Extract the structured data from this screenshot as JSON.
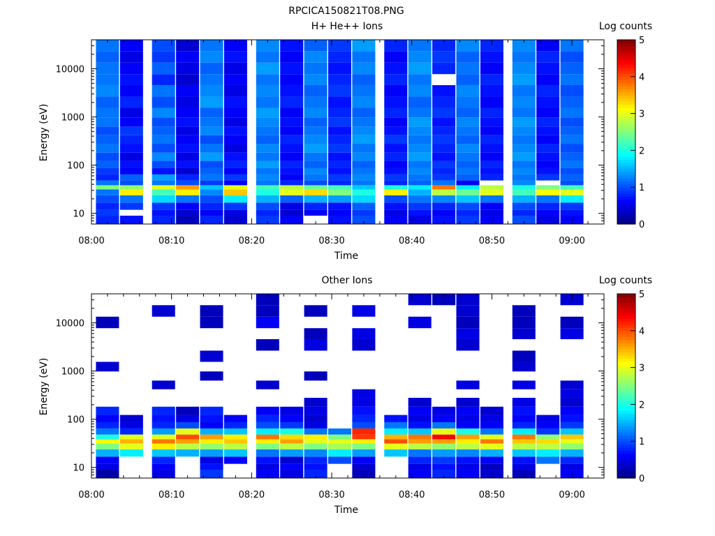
{
  "figure_title": "RPCICA150821T08.PNG",
  "colors": {
    "colormap": [
      "#00007f",
      "#0000ff",
      "#007fff",
      "#00ffff",
      "#7fff7f",
      "#ffff00",
      "#ff7f00",
      "#ff0000",
      "#7f0000"
    ],
    "line": "#000000",
    "background": "#ffffff"
  },
  "chart_data": [
    {
      "type": "heatmap",
      "title": "H+ He++ Ions",
      "xlabel": "Time",
      "ylabel": "Energy (eV)",
      "colorbar_label": "Log counts",
      "x_tick_labels": [
        "08:00",
        "08:10",
        "08:20",
        "08:30",
        "08:40",
        "08:50",
        "09:00"
      ],
      "y_tick_labels": [
        "10",
        "100",
        "1000",
        "10000"
      ],
      "colorbar_tick_labels": [
        "0",
        "1",
        "2",
        "3",
        "4",
        "5"
      ],
      "x_range_minutes": [
        0,
        64
      ],
      "y_scale": "log",
      "y_range_ev": [
        6,
        40000
      ],
      "z_range": [
        0,
        5
      ],
      "time_bins": [
        "08:02",
        "08:05",
        "08:09",
        "08:12",
        "08:15",
        "08:18",
        "08:22",
        "08:25",
        "08:28",
        "08:31",
        "08:34",
        "08:38",
        "08:41",
        "08:44",
        "08:47",
        "08:50",
        "08:54",
        "08:57",
        "09:00"
      ],
      "energy_levels_ev": [
        8,
        10,
        14,
        20,
        28,
        35,
        42,
        55,
        75,
        100,
        150,
        220,
        350,
        500,
        800,
        1200,
        2000,
        3500,
        6000,
        10000,
        18000,
        30000
      ],
      "values": [
        [
          0.8,
          0.9,
          0.8,
          1.0,
          1.2,
          2.5,
          1.2,
          0.8,
          0.9,
          1.1,
          1.0,
          1.2,
          1.1,
          1.0,
          1.2,
          1.2,
          1.1,
          1.3,
          1.2,
          1.2,
          1.1,
          1.2
        ],
        [
          0.7,
          null,
          0.9,
          1.2,
          3.2,
          2.6,
          1.0,
          1.1,
          0.6,
          0.7,
          0.5,
          0.7,
          0.8,
          0.9,
          0.6,
          0.5,
          0.8,
          0.6,
          0.7,
          0.6,
          0.5,
          0.6
        ],
        [
          0.8,
          0.7,
          0.9,
          1.7,
          2.2,
          3.0,
          1.2,
          1.4,
          0.7,
          1.0,
          1.3,
          1.0,
          1.2,
          1.1,
          1.0,
          1.3,
          1.0,
          1.2,
          0.8,
          1.1,
          0.9,
          1.0
        ],
        [
          0.3,
          0.4,
          0.6,
          1.2,
          3.2,
          3.6,
          1.0,
          0.8,
          0.4,
          0.7,
          0.5,
          0.7,
          0.6,
          0.5,
          0.7,
          0.6,
          0.5,
          0.6,
          0.4,
          0.5,
          0.6,
          0.4
        ],
        [
          0.8,
          0.6,
          0.8,
          1.0,
          1.3,
          1.6,
          0.9,
          1.2,
          1.1,
          1.0,
          1.4,
          1.2,
          1.0,
          1.3,
          1.2,
          1.1,
          1.4,
          1.3,
          1.2,
          1.1,
          1.3,
          1.2
        ],
        [
          0.4,
          0.5,
          0.9,
          1.8,
          3.4,
          3.0,
          0.6,
          0.9,
          0.6,
          0.8,
          0.7,
          0.5,
          0.6,
          0.7,
          0.5,
          0.6,
          0.7,
          0.5,
          0.6,
          0.5,
          0.7,
          0.6
        ],
        [
          0.9,
          0.8,
          1.0,
          1.5,
          2.0,
          2.2,
          1.2,
          1.3,
          1.2,
          1.4,
          1.2,
          1.3,
          1.1,
          1.2,
          1.3,
          1.4,
          1.2,
          1.3,
          1.2,
          1.4,
          1.2,
          1.3
        ],
        [
          0.6,
          0.4,
          0.5,
          1.1,
          3.0,
          2.8,
          0.8,
          0.6,
          0.7,
          0.8,
          0.6,
          0.7,
          0.8,
          0.6,
          0.7,
          0.6,
          0.8,
          0.7,
          0.6,
          0.7,
          0.6,
          0.7
        ],
        [
          null,
          0.6,
          0.8,
          1.5,
          3.3,
          2.4,
          1.0,
          1.2,
          1.3,
          1.1,
          1.2,
          1.4,
          1.3,
          1.2,
          1.1,
          1.3,
          1.2,
          1.1,
          1.3,
          1.2,
          1.3,
          1.1
        ],
        [
          0.7,
          0.6,
          0.7,
          1.4,
          2.5,
          2.2,
          0.8,
          0.9,
          0.7,
          0.8,
          0.7,
          0.9,
          0.8,
          0.7,
          0.9,
          0.8,
          0.7,
          0.9,
          0.8,
          0.7,
          0.8,
          0.9
        ],
        [
          1.0,
          0.9,
          1.1,
          1.7,
          2.0,
          1.6,
          1.2,
          1.3,
          1.2,
          1.1,
          1.3,
          1.2,
          1.4,
          1.3,
          1.2,
          1.1,
          1.3,
          1.2,
          1.1,
          1.3,
          1.2,
          1.4
        ],
        [
          0.6,
          0.5,
          0.7,
          1.0,
          3.2,
          2.0,
          0.8,
          0.9,
          0.7,
          0.6,
          0.8,
          0.7,
          0.9,
          0.7,
          0.6,
          0.8,
          0.7,
          0.6,
          0.8,
          0.7,
          0.6,
          0.8
        ],
        [
          0.5,
          0.7,
          0.9,
          1.2,
          1.5,
          1.8,
          1.1,
          1.2,
          1.3,
          1.2,
          1.4,
          1.3,
          1.2,
          1.3,
          1.4,
          1.2,
          1.1,
          1.3,
          1.2,
          1.4,
          1.3,
          1.2
        ],
        [
          0.7,
          0.6,
          0.8,
          1.3,
          2.8,
          3.8,
          1.2,
          0.9,
          0.8,
          0.9,
          0.7,
          0.8,
          0.9,
          0.8,
          0.7,
          0.9,
          0.8,
          0.7,
          null,
          0.8,
          0.9,
          0.8
        ],
        [
          0.9,
          0.8,
          1.0,
          1.6,
          2.4,
          1.8,
          0.6,
          1.1,
          1.2,
          1.1,
          1.2,
          1.3,
          1.1,
          1.2,
          1.3,
          1.1,
          1.2,
          1.3,
          1.1,
          1.2,
          1.1,
          1.3
        ],
        [
          0.6,
          0.5,
          0.6,
          1.2,
          3.0,
          2.8,
          null,
          0.8,
          0.7,
          0.8,
          0.6,
          0.7,
          0.8,
          0.6,
          0.7,
          0.8,
          0.6,
          0.7,
          0.8,
          0.6,
          0.7,
          0.8
        ],
        [
          1.0,
          0.8,
          1.0,
          1.5,
          2.2,
          2.0,
          1.3,
          1.2,
          1.3,
          1.2,
          1.4,
          1.3,
          1.2,
          1.3,
          1.4,
          1.2,
          1.3,
          1.2,
          1.4,
          1.3,
          1.2,
          1.3
        ],
        [
          0.5,
          0.6,
          0.8,
          1.2,
          3.1,
          2.5,
          null,
          0.9,
          0.7,
          0.6,
          0.7,
          0.8,
          0.6,
          0.7,
          0.8,
          0.6,
          0.7,
          0.8,
          0.6,
          0.7,
          0.8,
          0.6
        ],
        [
          0.6,
          0.7,
          0.9,
          1.8,
          3.0,
          2.2,
          1.0,
          1.1,
          1.0,
          1.2,
          1.1,
          1.0,
          1.2,
          1.1,
          1.0,
          1.2,
          1.1,
          1.0,
          1.2,
          1.1,
          1.0,
          1.2
        ]
      ]
    },
    {
      "type": "heatmap",
      "title": "Other Ions",
      "xlabel": "Time",
      "ylabel": "Energy (eV)",
      "colorbar_label": "Log counts",
      "x_tick_labels": [
        "08:00",
        "08:10",
        "08:20",
        "08:30",
        "08:40",
        "08:50",
        "09:00"
      ],
      "y_tick_labels": [
        "10",
        "100",
        "1000",
        "10000"
      ],
      "colorbar_tick_labels": [
        "0",
        "1",
        "2",
        "3",
        "4",
        "5"
      ],
      "x_range_minutes": [
        0,
        64
      ],
      "y_scale": "log",
      "y_range_ev": [
        6,
        40000
      ],
      "z_range": [
        0,
        5
      ],
      "time_bins": [
        "08:02",
        "08:05",
        "08:09",
        "08:12",
        "08:15",
        "08:18",
        "08:22",
        "08:25",
        "08:28",
        "08:31",
        "08:34",
        "08:38",
        "08:41",
        "08:44",
        "08:47",
        "08:50",
        "08:54",
        "08:57",
        "09:00"
      ],
      "energy_levels_ev": [
        8,
        10,
        14,
        20,
        28,
        35,
        42,
        55,
        75,
        100,
        150,
        220,
        350,
        500,
        800,
        1200,
        2000,
        3500,
        6000,
        10000,
        18000,
        30000
      ],
      "values": [
        [
          0.2,
          0.5,
          0.6,
          1.5,
          2.5,
          3.1,
          2.0,
          1.2,
          0.8,
          0.6,
          0.8,
          null,
          null,
          null,
          null,
          0.4,
          null,
          null,
          null,
          0.3,
          null,
          null
        ],
        [
          null,
          null,
          null,
          1.8,
          3.0,
          3.5,
          3.0,
          0.8,
          0.5,
          0.4,
          null,
          null,
          null,
          null,
          null,
          null,
          null,
          null,
          null,
          null,
          null,
          null
        ],
        [
          0.5,
          0.6,
          0.8,
          1.6,
          3.2,
          3.8,
          3.0,
          1.4,
          0.8,
          0.7,
          0.8,
          null,
          null,
          0.4,
          null,
          null,
          null,
          null,
          null,
          null,
          0.4,
          null
        ],
        [
          null,
          null,
          null,
          1.5,
          2.8,
          3.6,
          4.0,
          3.0,
          1.0,
          0.5,
          0.3,
          null,
          null,
          null,
          null,
          null,
          null,
          null,
          null,
          null,
          null,
          null
        ],
        [
          0.9,
          0.7,
          0.5,
          1.4,
          2.6,
          3.2,
          3.6,
          1.5,
          0.6,
          0.7,
          0.8,
          null,
          null,
          null,
          0.3,
          null,
          0.4,
          null,
          null,
          0.3,
          0.3,
          null
        ],
        [
          null,
          null,
          0.6,
          1.6,
          2.8,
          3.4,
          3.2,
          1.6,
          0.8,
          0.6,
          null,
          null,
          null,
          null,
          null,
          null,
          null,
          null,
          null,
          null,
          null,
          null
        ],
        [
          0.6,
          0.5,
          0.7,
          1.2,
          2.5,
          3.2,
          3.8,
          1.8,
          1.0,
          0.8,
          0.6,
          null,
          null,
          0.4,
          null,
          null,
          null,
          0.3,
          null,
          0.6,
          0.3,
          0.3
        ],
        [
          0.5,
          0.6,
          0.4,
          1.4,
          2.8,
          3.6,
          3.3,
          2.0,
          0.9,
          0.6,
          0.5,
          null,
          null,
          null,
          null,
          null,
          null,
          null,
          null,
          null,
          null,
          null
        ],
        [
          0.8,
          0.7,
          0.8,
          1.3,
          2.5,
          3.0,
          3.2,
          1.2,
          0.5,
          0.4,
          0.5,
          0.4,
          null,
          null,
          0.3,
          null,
          null,
          0.5,
          0.3,
          null,
          0.3,
          null
        ],
        [
          null,
          null,
          1.0,
          1.8,
          2.7,
          3.0,
          2.5,
          1.2,
          null,
          null,
          null,
          null,
          null,
          null,
          null,
          null,
          null,
          null,
          null,
          null,
          null,
          null
        ],
        [
          0.3,
          0.4,
          0.6,
          1.4,
          2.5,
          3.2,
          4.1,
          4.2,
          1.0,
          0.8,
          0.7,
          0.5,
          0.5,
          null,
          null,
          null,
          null,
          0.4,
          0.5,
          null,
          0.5,
          null
        ],
        [
          null,
          null,
          null,
          1.6,
          3.0,
          4.0,
          3.5,
          1.8,
          1.2,
          0.7,
          null,
          null,
          null,
          null,
          null,
          null,
          null,
          null,
          null,
          null,
          null,
          null
        ],
        [
          0.6,
          0.5,
          0.8,
          1.2,
          2.8,
          3.6,
          3.8,
          1.6,
          0.7,
          0.5,
          0.6,
          0.4,
          null,
          null,
          null,
          null,
          null,
          null,
          null,
          0.5,
          null,
          0.4
        ],
        [
          0.8,
          0.7,
          0.9,
          1.4,
          2.6,
          3.6,
          4.4,
          3.0,
          1.2,
          0.6,
          0.5,
          null,
          null,
          null,
          null,
          null,
          null,
          null,
          null,
          null,
          null,
          0.3
        ],
        [
          0.6,
          0.5,
          0.7,
          1.3,
          2.8,
          3.2,
          3.6,
          2.0,
          0.6,
          0.5,
          0.6,
          0.4,
          null,
          0.5,
          null,
          null,
          null,
          0.4,
          0.5,
          0.3,
          0.4,
          0.4
        ],
        [
          0.4,
          0.3,
          0.6,
          1.5,
          3.0,
          3.8,
          3.0,
          1.2,
          0.6,
          0.5,
          0.4,
          null,
          null,
          null,
          null,
          null,
          null,
          null,
          null,
          null,
          null,
          null
        ],
        [
          0.3,
          0.5,
          0.7,
          1.6,
          2.8,
          3.4,
          3.8,
          1.8,
          0.8,
          0.6,
          0.7,
          0.5,
          null,
          0.5,
          null,
          0.4,
          0.3,
          null,
          0.4,
          0.3,
          0.3,
          null
        ],
        [
          null,
          null,
          1.2,
          1.8,
          2.8,
          3.3,
          2.6,
          0.9,
          0.6,
          0.5,
          null,
          null,
          null,
          null,
          null,
          null,
          null,
          null,
          null,
          null,
          null,
          null
        ],
        [
          0.6,
          0.5,
          0.8,
          1.5,
          2.6,
          3.0,
          3.4,
          1.6,
          0.9,
          0.7,
          0.6,
          0.4,
          0.5,
          0.4,
          null,
          null,
          null,
          null,
          0.5,
          0.3,
          null,
          0.4
        ]
      ]
    }
  ]
}
